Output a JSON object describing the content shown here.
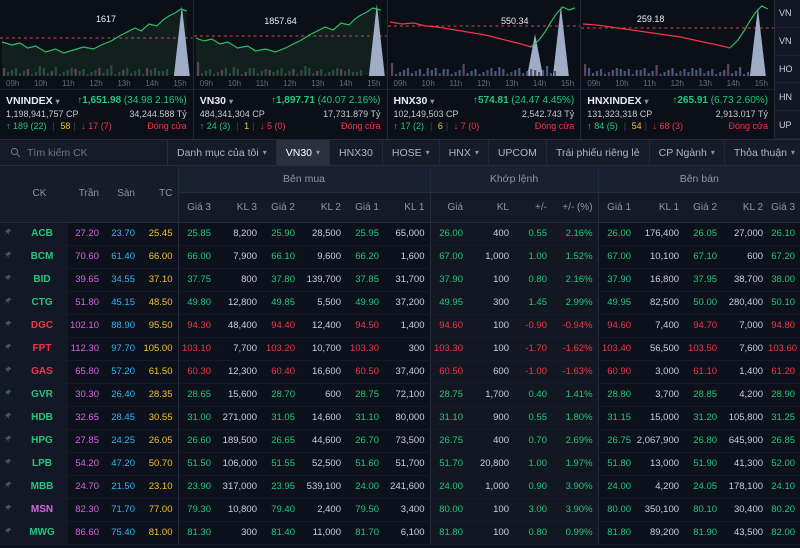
{
  "indices": [
    {
      "name": "VNINDEX",
      "value": "1,651.98",
      "change": "(34.98 2.16%)",
      "volume": "1,198,941,757 CP",
      "turnover": "34,244.588 Tỷ",
      "advancers": "189 (22)",
      "unchanged": "58",
      "decliners": "17 (7)",
      "session": "Đóng cửa",
      "annotation": "1617",
      "axis": [
        "09h",
        "10h",
        "11h",
        "12h",
        "13h",
        "14h",
        "15h"
      ]
    },
    {
      "name": "VN30",
      "value": "1,897.71",
      "change": "(40.07 2.16%)",
      "volume": "484,341,304 CP",
      "turnover": "17,731.879 Tỷ",
      "advancers": "24 (3)",
      "unchanged": "1",
      "decliners": "5 (0)",
      "session": "Đóng cửa",
      "annotation": "1857.64",
      "axis": [
        "09h",
        "10h",
        "11h",
        "12h",
        "13h",
        "14h",
        "15h"
      ]
    },
    {
      "name": "HNX30",
      "value": "574.81",
      "change": "(24.47 4.45%)",
      "volume": "102,149,503 CP",
      "turnover": "2,542.743 Tỷ",
      "advancers": "17 (2)",
      "unchanged": "6",
      "decliners": "7 (0)",
      "session": "Đóng cửa",
      "annotation": "550.34",
      "axis": [
        "09h",
        "10h",
        "11h",
        "12h",
        "13h",
        "14h",
        "15h"
      ]
    },
    {
      "name": "HNXINDEX",
      "value": "265.91",
      "change": "(6.73 2.60%)",
      "volume": "131,323,318 CP",
      "turnover": "2,913.017 Tỷ",
      "advancers": "84 (5)",
      "unchanged": "54",
      "decliners": "68 (3)",
      "session": "Đóng cửa",
      "annotation": "259.18",
      "axis": [
        "09h",
        "10h",
        "11h",
        "12h",
        "13h",
        "14h",
        "15h"
      ]
    }
  ],
  "side_panel": {
    "items": [
      "VN",
      "VN",
      "HO",
      "HN",
      "UP"
    ]
  },
  "toolbar": {
    "search_placeholder": "Tìm kiếm CK",
    "active_tab": "VN30",
    "tabs": [
      {
        "label": "Danh mục của tôi",
        "caret": true
      },
      {
        "label": "VN30",
        "caret": true
      },
      {
        "label": "HNX30",
        "caret": false
      },
      {
        "label": "HOSE",
        "caret": true
      },
      {
        "label": "HNX",
        "caret": true
      },
      {
        "label": "UPCOM",
        "caret": false
      },
      {
        "label": "Trái phiếu riêng lẻ",
        "caret": false
      },
      {
        "label": "CP Ngành",
        "caret": true
      },
      {
        "label": "Thỏa thuận",
        "caret": true
      }
    ]
  },
  "table": {
    "groups": {
      "buy": "Bên mua",
      "matched": "Khớp lệnh",
      "sell": "Bên bán"
    },
    "cols": {
      "ck": "CK",
      "ceiling": "Trần",
      "floor": "Sàn",
      "ref": "TC",
      "buy": [
        "Giá 3",
        "KL 3",
        "Giá 2",
        "KL 2",
        "Giá 1",
        "KL 1"
      ],
      "matched": [
        "Giá",
        "KL",
        "+/-",
        "+/- (%)"
      ],
      "sell": [
        "Giá 1",
        "KL 1",
        "Giá 2",
        "KL 2",
        "Giá 3"
      ]
    },
    "rows": [
      {
        "ck": "ACB",
        "color": "up",
        "ceiling": "27.20",
        "floor": "23.70",
        "ref": "25.45",
        "buy": [
          "25.85",
          "8,200",
          "25.90",
          "28,500",
          "25.95",
          "65,000"
        ],
        "matched": [
          "26.00",
          "400",
          "0.55",
          "2.16%"
        ],
        "sell": [
          "26.00",
          "176,400",
          "26.05",
          "27,000",
          "26.10"
        ]
      },
      {
        "ck": "BCM",
        "color": "up",
        "ceiling": "70.60",
        "floor": "61.40",
        "ref": "66.00",
        "buy": [
          "66.00",
          "7,900",
          "66.10",
          "9,600",
          "66.20",
          "1,600"
        ],
        "matched": [
          "67.00",
          "1,000",
          "1.00",
          "1.52%"
        ],
        "sell": [
          "67.00",
          "10,100",
          "67.10",
          "600",
          "67.20"
        ]
      },
      {
        "ck": "BID",
        "color": "up",
        "ceiling": "39.65",
        "floor": "34.55",
        "ref": "37.10",
        "buy": [
          "37.75",
          "800",
          "37.80",
          "139,700",
          "37.85",
          "31,700"
        ],
        "matched": [
          "37.90",
          "100",
          "0.80",
          "2.16%"
        ],
        "sell": [
          "37.90",
          "16,800",
          "37.95",
          "38,700",
          "38.00"
        ]
      },
      {
        "ck": "CTG",
        "color": "up",
        "ceiling": "51.80",
        "floor": "45.15",
        "ref": "48.50",
        "buy": [
          "49.80",
          "12,800",
          "49.85",
          "5,500",
          "49.90",
          "37,200"
        ],
        "matched": [
          "49.95",
          "300",
          "1.45",
          "2.99%"
        ],
        "sell": [
          "49.95",
          "82,500",
          "50.00",
          "280,400",
          "50.10"
        ]
      },
      {
        "ck": "DGC",
        "color": "down",
        "ceiling": "102.10",
        "floor": "88.90",
        "ref": "95.50",
        "buy": [
          "94.30",
          "48,400",
          "94.40",
          "12,400",
          "94.50",
          "1,400"
        ],
        "matched": [
          "94.60",
          "100",
          "-0.90",
          "-0.94%"
        ],
        "sell": [
          "94.60",
          "7,400",
          "94.70",
          "7,000",
          "94.80"
        ]
      },
      {
        "ck": "FPT",
        "color": "down",
        "ceiling": "112.30",
        "floor": "97.70",
        "ref": "105.00",
        "buy": [
          "103.10",
          "7,700",
          "103.20",
          "10,700",
          "103.30",
          "300"
        ],
        "matched": [
          "103.30",
          "100",
          "-1.70",
          "-1.62%"
        ],
        "sell": [
          "103.40",
          "56,500",
          "103.50",
          "7,600",
          "103.60"
        ]
      },
      {
        "ck": "GAS",
        "color": "down",
        "ceiling": "65.80",
        "floor": "57.20",
        "ref": "61.50",
        "buy": [
          "60.30",
          "12,300",
          "60.40",
          "16,600",
          "60.50",
          "37,400"
        ],
        "matched": [
          "60.50",
          "600",
          "-1.00",
          "-1.63%"
        ],
        "sell": [
          "60.90",
          "3,000",
          "61.10",
          "1,400",
          "61.20"
        ]
      },
      {
        "ck": "GVR",
        "color": "up",
        "ceiling": "30.30",
        "floor": "26.40",
        "ref": "28.35",
        "buy": [
          "28.65",
          "15,600",
          "28.70",
          "600",
          "28.75",
          "72,100"
        ],
        "matched": [
          "28.75",
          "1,700",
          "0.40",
          "1.41%"
        ],
        "sell": [
          "28.80",
          "3,700",
          "28.85",
          "4,200",
          "28.90"
        ]
      },
      {
        "ck": "HDB",
        "color": "up",
        "ceiling": "32.65",
        "floor": "28.45",
        "ref": "30.55",
        "buy": [
          "31.00",
          "271,000",
          "31.05",
          "14,600",
          "31.10",
          "80,000"
        ],
        "matched": [
          "31.10",
          "900",
          "0.55",
          "1.80%"
        ],
        "sell": [
          "31.15",
          "15,000",
          "31.20",
          "105,800",
          "31.25"
        ]
      },
      {
        "ck": "HPG",
        "color": "up",
        "ceiling": "27.85",
        "floor": "24.25",
        "ref": "26.05",
        "buy": [
          "26.60",
          "189,500",
          "26.65",
          "44,600",
          "26.70",
          "73,500"
        ],
        "matched": [
          "26.75",
          "400",
          "0.70",
          "2.69%"
        ],
        "sell": [
          "26.75",
          "2,067,900",
          "26.80",
          "645,900",
          "26.85"
        ]
      },
      {
        "ck": "LPB",
        "color": "up",
        "ceiling": "54.20",
        "floor": "47.20",
        "ref": "50.70",
        "buy": [
          "51.50",
          "106,000",
          "51.55",
          "52,500",
          "51.60",
          "51,700"
        ],
        "matched": [
          "51.70",
          "20,800",
          "1.00",
          "1.97%"
        ],
        "sell": [
          "51.80",
          "13,000",
          "51.90",
          "41,300",
          "52.00"
        ]
      },
      {
        "ck": "MBB",
        "color": "up",
        "ceiling": "24.70",
        "floor": "21.50",
        "ref": "23.10",
        "buy": [
          "23.90",
          "317,000",
          "23.95",
          "539,100",
          "24.00",
          "241,600"
        ],
        "matched": [
          "24.00",
          "1,000",
          "0.90",
          "3.90%"
        ],
        "sell": [
          "24.00",
          "4,200",
          "24.05",
          "178,100",
          "24.10"
        ]
      },
      {
        "ck": "MSN",
        "color": "up",
        "ticker_color": "ceil",
        "ceiling": "82.30",
        "floor": "71.70",
        "ref": "77.00",
        "buy": [
          "79.30",
          "10,800",
          "79.40",
          "2,400",
          "79.50",
          "3,400"
        ],
        "matched": [
          "80.00",
          "100",
          "3.00",
          "3.90%"
        ],
        "sell": [
          "80.00",
          "350,100",
          "80.10",
          "30,400",
          "80.20"
        ]
      },
      {
        "ck": "MWG",
        "color": "up",
        "ceiling": "86.60",
        "floor": "75.40",
        "ref": "81.00",
        "buy": [
          "81.30",
          "300",
          "81.40",
          "11,000",
          "81.70",
          "6,100"
        ],
        "matched": [
          "81.80",
          "100",
          "0.80",
          "0.99%"
        ],
        "sell": [
          "81.80",
          "89,200",
          "81.90",
          "43,500",
          "82.00"
        ]
      }
    ]
  },
  "colors": {
    "up": "#21c77d",
    "down": "#f23645",
    "ceiling": "#d865e0",
    "floor": "#31b6f2",
    "reference": "#f0c330",
    "volume_text": "#c9d1de"
  }
}
